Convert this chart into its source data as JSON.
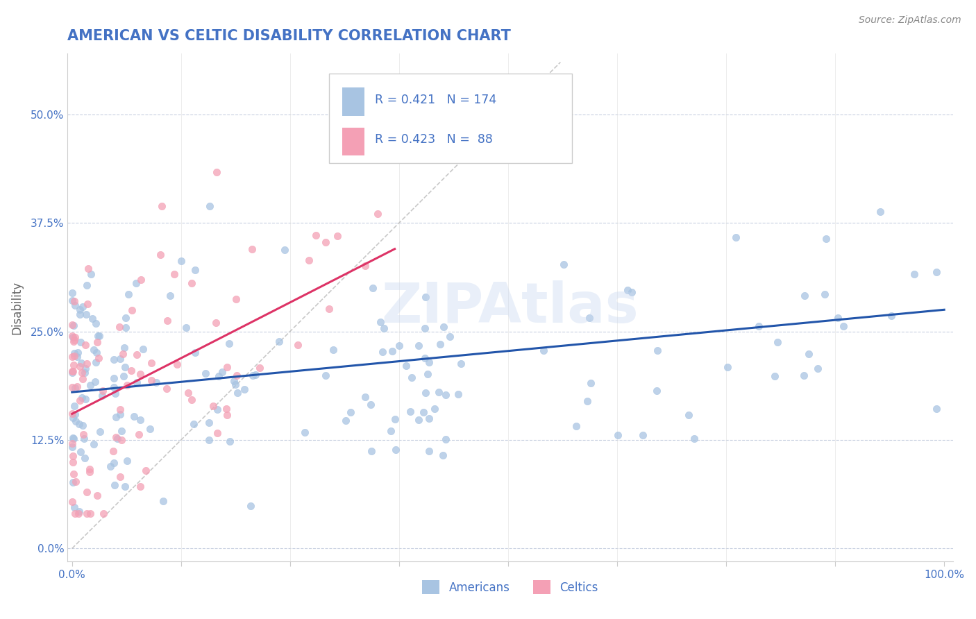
{
  "title": "AMERICAN VS CELTIC DISABILITY CORRELATION CHART",
  "source": "Source: ZipAtlas.com",
  "ylabel": "Disability",
  "american_color": "#a8c4e2",
  "celtic_color": "#f4a0b5",
  "american_line_color": "#2255aa",
  "celtic_line_color": "#dd3366",
  "title_color": "#4472c4",
  "watermark_color": "#c8d8f0",
  "background_color": "#ffffff",
  "grid_color": "#c8d0e0",
  "ref_line_color": "#bbbbbb",
  "tick_color": "#4472c4",
  "ylabel_color": "#666666",
  "source_color": "#888888",
  "legend_box_color": "#dddddd",
  "am_seed": 42,
  "ce_seed": 99
}
